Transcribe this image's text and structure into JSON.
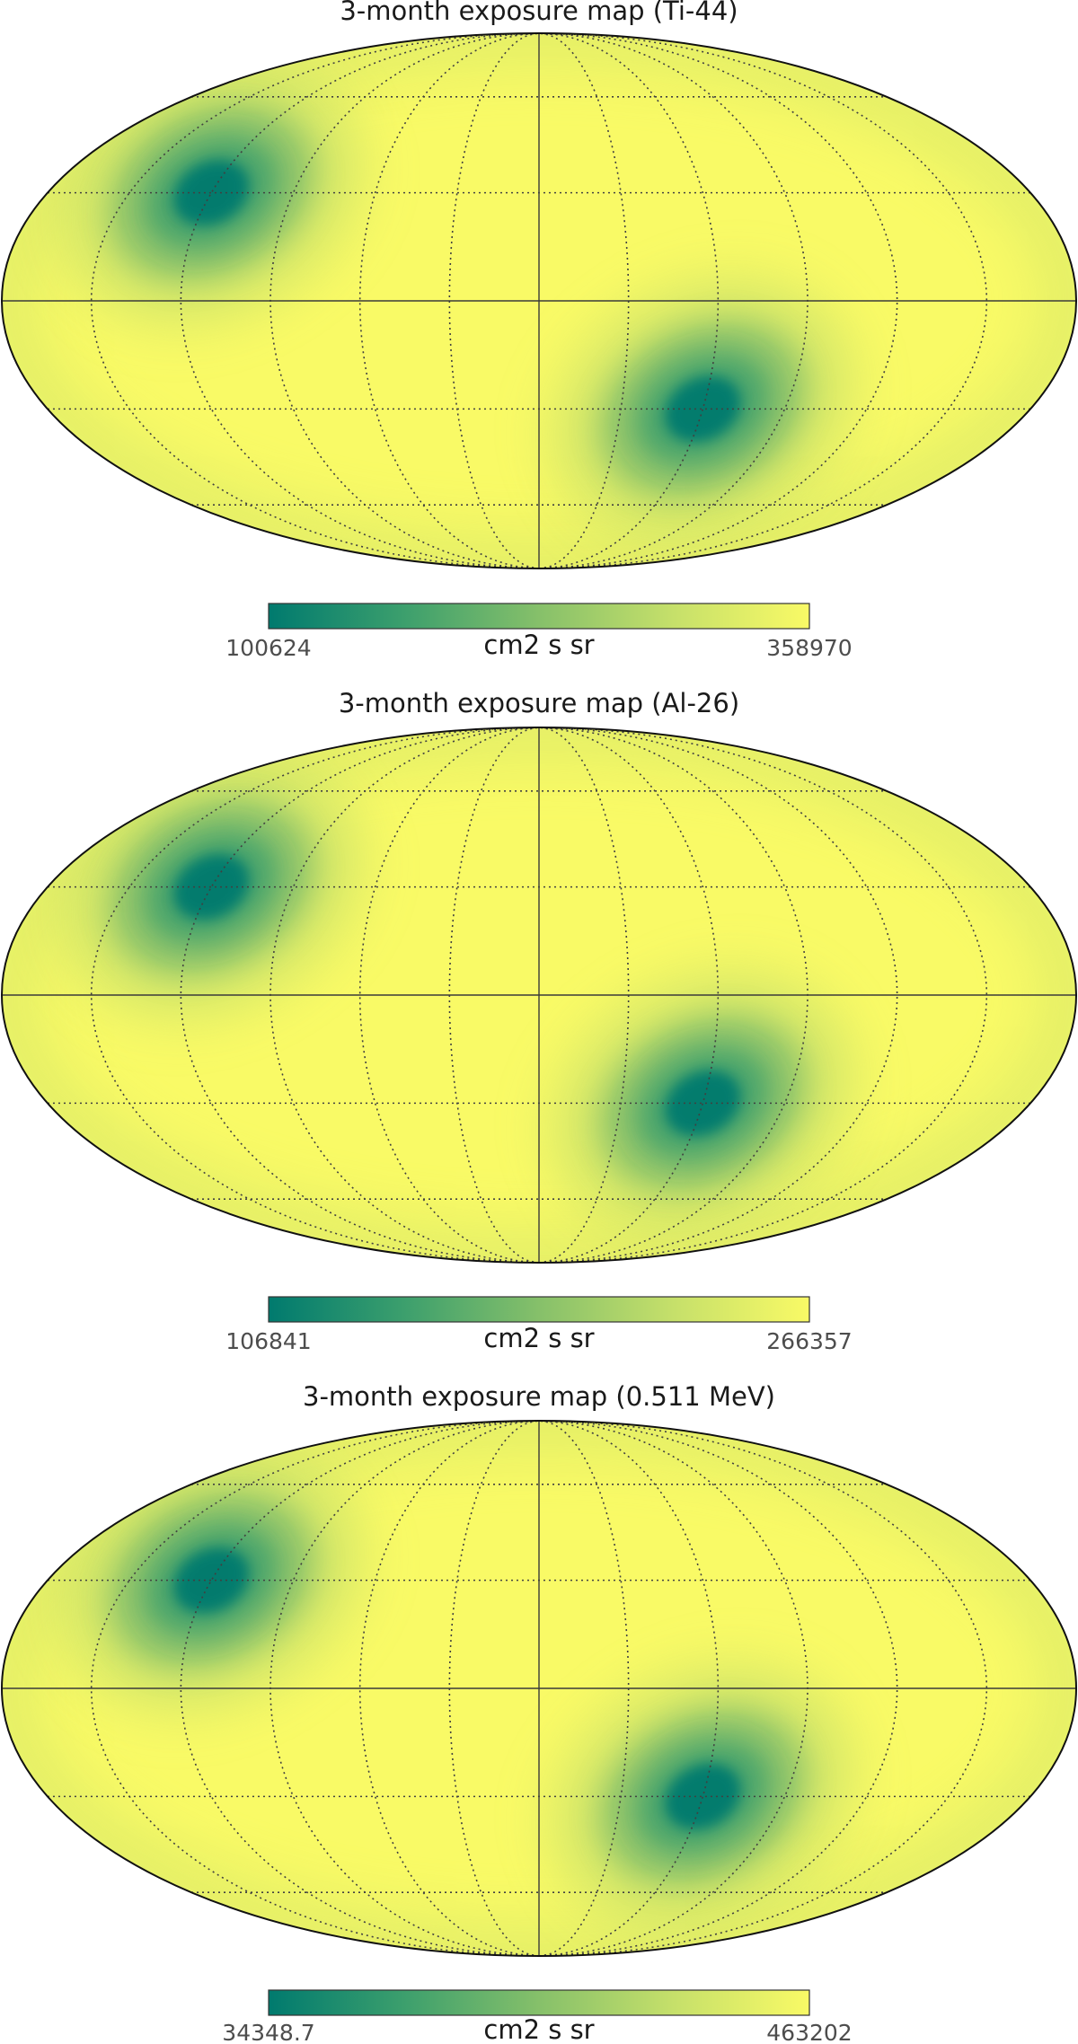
{
  "chart_data": [
    {
      "type": "heatmap",
      "projection": "mollweide",
      "title": "3-month exposure map (Ti-44)",
      "colorbar": {
        "min_label": "100624",
        "max_label": "358970",
        "unit": "cm2 s sr",
        "min": 100624,
        "max": 358970
      },
      "colormap": [
        "#007a6e",
        "#3c9f6d",
        "#86c06a",
        "#c6e06a",
        "#f9fa66"
      ],
      "graticule": {
        "longitude_step_deg": 30,
        "latitude_step_deg": 30
      },
      "low_exposure_regions": [
        {
          "lon_deg": 120,
          "lat_deg": 30,
          "rel_level": 0.0
        },
        {
          "lon_deg": -60,
          "lat_deg": -30,
          "rel_level": 0.0
        }
      ]
    },
    {
      "type": "heatmap",
      "projection": "mollweide",
      "title": "3-month exposure map (Al-26)",
      "colorbar": {
        "min_label": "106841",
        "max_label": "266357",
        "unit": "cm2 s sr",
        "min": 106841,
        "max": 266357
      },
      "colormap": [
        "#007a6e",
        "#3c9f6d",
        "#86c06a",
        "#c6e06a",
        "#f9fa66"
      ],
      "graticule": {
        "longitude_step_deg": 30,
        "latitude_step_deg": 30
      },
      "low_exposure_regions": [
        {
          "lon_deg": 120,
          "lat_deg": 30,
          "rel_level": 0.0
        },
        {
          "lon_deg": -60,
          "lat_deg": -30,
          "rel_level": 0.0
        }
      ]
    },
    {
      "type": "heatmap",
      "projection": "mollweide",
      "title": "3-month exposure map (0.511 MeV)",
      "colorbar": {
        "min_label": "34348.7",
        "max_label": "463202",
        "unit": "cm2 s sr",
        "min": 34348.7,
        "max": 463202
      },
      "colormap": [
        "#007a6e",
        "#3c9f6d",
        "#86c06a",
        "#c6e06a",
        "#f9fa66"
      ],
      "graticule": {
        "longitude_step_deg": 30,
        "latitude_step_deg": 30
      },
      "low_exposure_regions": [
        {
          "lon_deg": 120,
          "lat_deg": 30,
          "rel_level": 0.0
        },
        {
          "lon_deg": -60,
          "lat_deg": -30,
          "rel_level": 0.0
        }
      ]
    }
  ]
}
